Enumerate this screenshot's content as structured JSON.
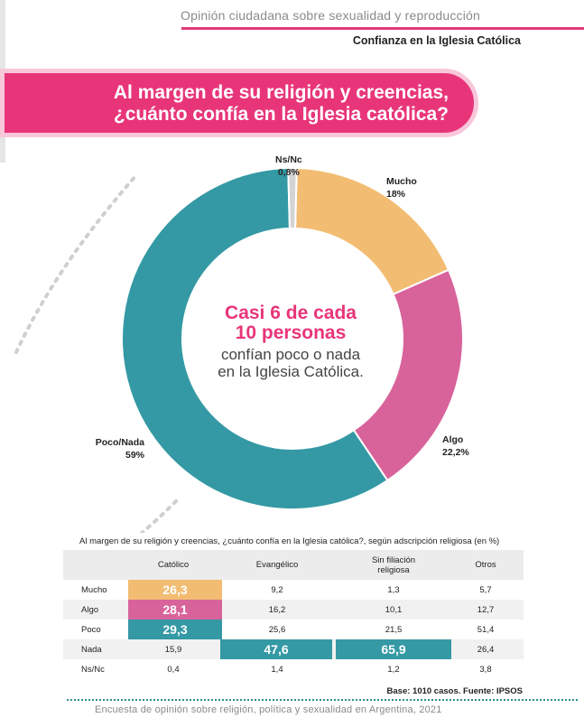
{
  "header": {
    "tag": "Opinión ciudadana sobre sexualidad y reproducción",
    "section": "Confianza en la Iglesia Católica"
  },
  "banner": {
    "line1": "Al margen de su religión y creencias,",
    "line2": "¿cuánto confía en la Iglesia católica?"
  },
  "colors": {
    "mucho": "#f2bd72",
    "algo": "#d8639b",
    "poco_nada": "#3499a4",
    "nsnc": "#d4d4d4",
    "accent": "#e8357a"
  },
  "center": {
    "head1": "Casi 6 de cada",
    "head2": "10 personas",
    "sub1": "confían poco o nada",
    "sub2": "en la Iglesia Católica."
  },
  "chart_data": [
    {
      "type": "pie",
      "slices": [
        {
          "label": "Mucho",
          "value": 18,
          "display": "18%"
        },
        {
          "label": "Algo",
          "value": 22.2,
          "display": "22,2%"
        },
        {
          "label": "Poco/Nada",
          "value": 59,
          "display": "59%"
        },
        {
          "label": "Ns/Nc",
          "value": 0.8,
          "display": "0,8%"
        }
      ]
    },
    {
      "type": "table",
      "title": "Al margen de su religión y creencias, ¿cuánto confía en la Iglesia católica?, según adscripción religiosa (en %)",
      "columns": [
        "Católico",
        "Evangélico",
        "Sin filiación religiosa",
        "Otros"
      ],
      "col_labels": [
        "Católico",
        "Evangélico",
        "Sin filiación",
        "religiosa",
        "Otros"
      ],
      "rows": [
        {
          "label": "Mucho",
          "values": [
            "26,3",
            "9,2",
            "1,3",
            "5,7"
          ]
        },
        {
          "label": "Algo",
          "values": [
            "28,1",
            "16,2",
            "10,1",
            "12,7"
          ]
        },
        {
          "label": "Poco",
          "values": [
            "29,3",
            "25,6",
            "21,5",
            "51,4"
          ]
        },
        {
          "label": "Nada",
          "values": [
            "15,9",
            "47,6",
            "65,9",
            "26,4"
          ]
        },
        {
          "label": "Ns/Nc",
          "values": [
            "0,4",
            "1,4",
            "1,2",
            "3,8"
          ]
        }
      ]
    }
  ],
  "base_note": "Base: 1010 casos. Fuente: IPSOS",
  "footer": "Encuesta de opinión sobre religión, política y sexualidad en Argentina, 2021"
}
